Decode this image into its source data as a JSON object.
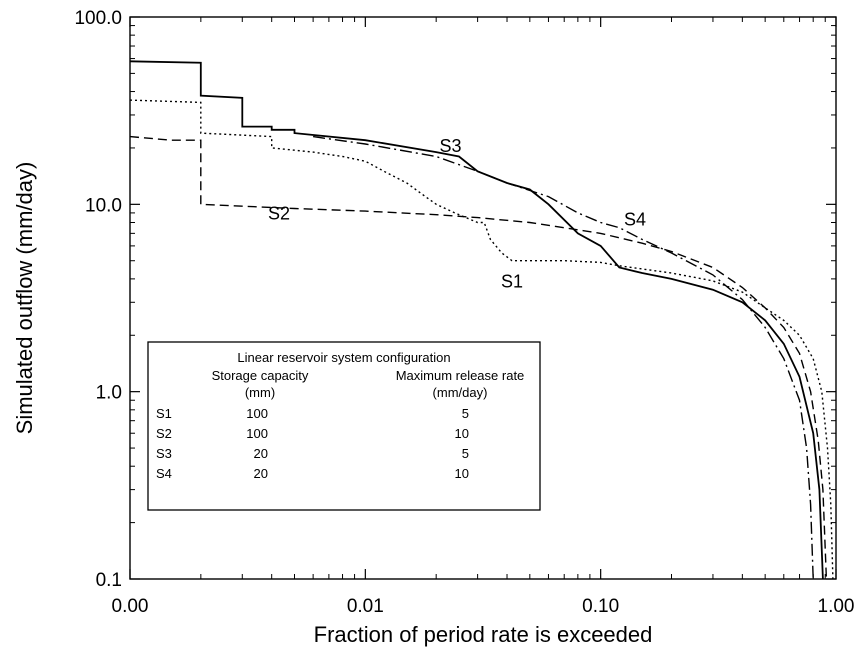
{
  "chart_data": {
    "type": "line",
    "title": "",
    "xlabel": "Fraction of period rate is exceeded",
    "ylabel": "Simulated outflow (mm/day)",
    "x_scale": "log",
    "y_scale": "log",
    "xlim": [
      0.001,
      1.0
    ],
    "ylim": [
      0.1,
      100.0
    ],
    "x_ticks": [
      {
        "value": 0.001,
        "label": "0.00"
      },
      {
        "value": 0.01,
        "label": "0.01"
      },
      {
        "value": 0.1,
        "label": "0.10"
      },
      {
        "value": 1.0,
        "label": "1.00"
      }
    ],
    "y_ticks": [
      {
        "value": 0.1,
        "label": "0.1"
      },
      {
        "value": 1.0,
        "label": "1.0"
      },
      {
        "value": 10.0,
        "label": "10.0"
      },
      {
        "value": 100.0,
        "label": "100.0"
      }
    ],
    "grid": false,
    "series": [
      {
        "name": "S1",
        "line_style": "dotted",
        "label_at": [
          0.042,
          3.6
        ],
        "points": [
          [
            0.001,
            36
          ],
          [
            0.002,
            35
          ],
          [
            0.002,
            24
          ],
          [
            0.004,
            23
          ],
          [
            0.004,
            20
          ],
          [
            0.006,
            19
          ],
          [
            0.008,
            18
          ],
          [
            0.01,
            17
          ],
          [
            0.012,
            15
          ],
          [
            0.015,
            13
          ],
          [
            0.018,
            11
          ],
          [
            0.02,
            10
          ],
          [
            0.024,
            9
          ],
          [
            0.03,
            8
          ],
          [
            0.032,
            8
          ],
          [
            0.034,
            6.5
          ],
          [
            0.038,
            5.5
          ],
          [
            0.042,
            5
          ],
          [
            0.05,
            5
          ],
          [
            0.07,
            5
          ],
          [
            0.1,
            4.9
          ],
          [
            0.12,
            4.7
          ],
          [
            0.2,
            4.3
          ],
          [
            0.3,
            3.9
          ],
          [
            0.4,
            3.4
          ],
          [
            0.5,
            2.8
          ],
          [
            0.6,
            2.4
          ],
          [
            0.7,
            2.0
          ],
          [
            0.8,
            1.5
          ],
          [
            0.87,
            1.0
          ],
          [
            0.92,
            0.5
          ],
          [
            0.95,
            0.25
          ],
          [
            0.97,
            0.1
          ]
        ]
      },
      {
        "name": "S2",
        "line_style": "dashed",
        "label_at": [
          0.0043,
          8.3
        ],
        "points": [
          [
            0.001,
            23
          ],
          [
            0.0015,
            22
          ],
          [
            0.002,
            22
          ],
          [
            0.002,
            10
          ],
          [
            0.005,
            9.5
          ],
          [
            0.01,
            9.2
          ],
          [
            0.02,
            8.8
          ],
          [
            0.03,
            8.5
          ],
          [
            0.05,
            8.0
          ],
          [
            0.08,
            7.3
          ],
          [
            0.1,
            7.0
          ],
          [
            0.15,
            6.2
          ],
          [
            0.2,
            5.6
          ],
          [
            0.3,
            4.6
          ],
          [
            0.4,
            3.6
          ],
          [
            0.5,
            2.8
          ],
          [
            0.6,
            2.2
          ],
          [
            0.7,
            1.6
          ],
          [
            0.78,
            1.0
          ],
          [
            0.84,
            0.55
          ],
          [
            0.88,
            0.3
          ],
          [
            0.91,
            0.1
          ]
        ]
      },
      {
        "name": "S3",
        "line_style": "solid",
        "label_at": [
          0.023,
          19
        ],
        "points": [
          [
            0.001,
            58
          ],
          [
            0.002,
            57
          ],
          [
            0.002,
            38
          ],
          [
            0.003,
            37
          ],
          [
            0.003,
            26
          ],
          [
            0.004,
            26
          ],
          [
            0.004,
            25
          ],
          [
            0.005,
            25
          ],
          [
            0.005,
            24
          ],
          [
            0.01,
            22
          ],
          [
            0.02,
            19
          ],
          [
            0.025,
            18
          ],
          [
            0.03,
            15
          ],
          [
            0.04,
            13
          ],
          [
            0.05,
            12
          ],
          [
            0.06,
            10
          ],
          [
            0.08,
            7
          ],
          [
            0.1,
            6
          ],
          [
            0.12,
            4.6
          ],
          [
            0.15,
            4.3
          ],
          [
            0.2,
            4.0
          ],
          [
            0.3,
            3.5
          ],
          [
            0.4,
            3.0
          ],
          [
            0.5,
            2.4
          ],
          [
            0.6,
            1.8
          ],
          [
            0.7,
            1.2
          ],
          [
            0.8,
            0.6
          ],
          [
            0.85,
            0.3
          ],
          [
            0.88,
            0.1
          ]
        ]
      },
      {
        "name": "S4",
        "line_style": "dash-dot",
        "label_at": [
          0.14,
          7.7
        ],
        "points": [
          [
            0.006,
            23
          ],
          [
            0.01,
            21
          ],
          [
            0.02,
            18
          ],
          [
            0.03,
            15
          ],
          [
            0.04,
            13
          ],
          [
            0.06,
            11
          ],
          [
            0.08,
            9
          ],
          [
            0.1,
            8
          ],
          [
            0.12,
            7.5
          ],
          [
            0.15,
            6.5
          ],
          [
            0.2,
            5.5
          ],
          [
            0.3,
            4.2
          ],
          [
            0.4,
            3.1
          ],
          [
            0.5,
            2.2
          ],
          [
            0.6,
            1.5
          ],
          [
            0.7,
            0.9
          ],
          [
            0.75,
            0.5
          ],
          [
            0.78,
            0.25
          ],
          [
            0.8,
            0.1
          ]
        ]
      }
    ],
    "legend": {
      "title": "Linear reservoir system configuration",
      "col_headers": {
        "storage": "Storage capacity",
        "storage_unit": "(mm)",
        "release": "Maximum release rate",
        "release_unit": "(mm/day)"
      },
      "rows": [
        {
          "name": "S1",
          "storage": "100",
          "release": "5"
        },
        {
          "name": "S2",
          "storage": "100",
          "release": "10"
        },
        {
          "name": "S3",
          "storage": "20",
          "release": "5"
        },
        {
          "name": "S4",
          "storage": "20",
          "release": "10"
        }
      ]
    }
  }
}
